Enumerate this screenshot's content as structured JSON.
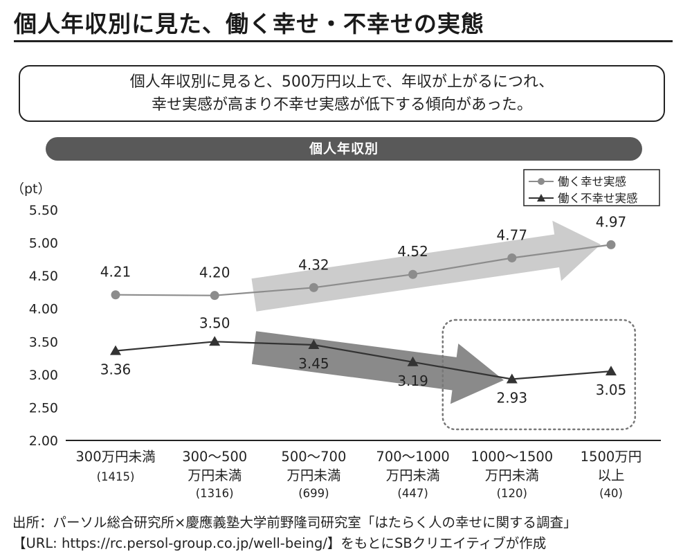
{
  "title": "個人年収別に見た、働く幸せ・不幸せの実態",
  "summary": {
    "line1": "個人年収別に見ると、500万円以上で、年収が上がるにつれ、",
    "line2": "幸せ実感が高まり不幸せ実感が低下する傾向があった。"
  },
  "section_label": "個人年収別",
  "source": {
    "line1": "出所：パーソル総合研究所×慶應義塾大学前野隆司研究室「はたらく人の幸せに関する調査」",
    "line2": "【URL: https://rc.persol-group.co.jp/well-being/】をもとにSBクリエイティブが作成"
  },
  "chart_data": {
    "type": "line",
    "yunit": "（pt）",
    "ylim": [
      2.0,
      5.5
    ],
    "yticks": [
      "5.50",
      "5.00",
      "4.50",
      "4.00",
      "3.50",
      "3.00",
      "2.50",
      "2.00"
    ],
    "categories": [
      {
        "lines": [
          "300万円未満"
        ],
        "n": "(1415)"
      },
      {
        "lines": [
          "300〜500",
          "万円未満"
        ],
        "n": "(1316)"
      },
      {
        "lines": [
          "500〜700",
          "万円未満"
        ],
        "n": "(699)"
      },
      {
        "lines": [
          "700〜1000",
          "万円未満"
        ],
        "n": "(447)"
      },
      {
        "lines": [
          "1000〜1500",
          "万円未満"
        ],
        "n": "(120)"
      },
      {
        "lines": [
          "1500万円",
          "以上"
        ],
        "n": "(40)"
      }
    ],
    "series": [
      {
        "name": "働く幸せ実感",
        "marker": "circle",
        "color": "#8c8c8c",
        "values": [
          4.21,
          4.2,
          4.32,
          4.52,
          4.77,
          4.97
        ],
        "labels": [
          "4.21",
          "4.20",
          "4.32",
          "4.52",
          "4.77",
          "4.97"
        ]
      },
      {
        "name": "働く不幸せ実感",
        "marker": "triangle",
        "color": "#333333",
        "values": [
          3.36,
          3.5,
          3.45,
          3.19,
          2.93,
          3.05
        ],
        "labels": [
          "3.36",
          "3.50",
          "3.45",
          "3.19",
          "2.93",
          "3.05"
        ]
      }
    ],
    "legend": "top-right",
    "grid": false,
    "highlight_trend": [
      {
        "series": "働く幸せ実感",
        "from_category": 2,
        "to_category": 5,
        "color": "#cccccc"
      },
      {
        "series": "働く不幸せ実感",
        "from_category": 2,
        "to_category": 4,
        "color": "#8a8a8a"
      }
    ],
    "highlight_box_category": 4
  }
}
